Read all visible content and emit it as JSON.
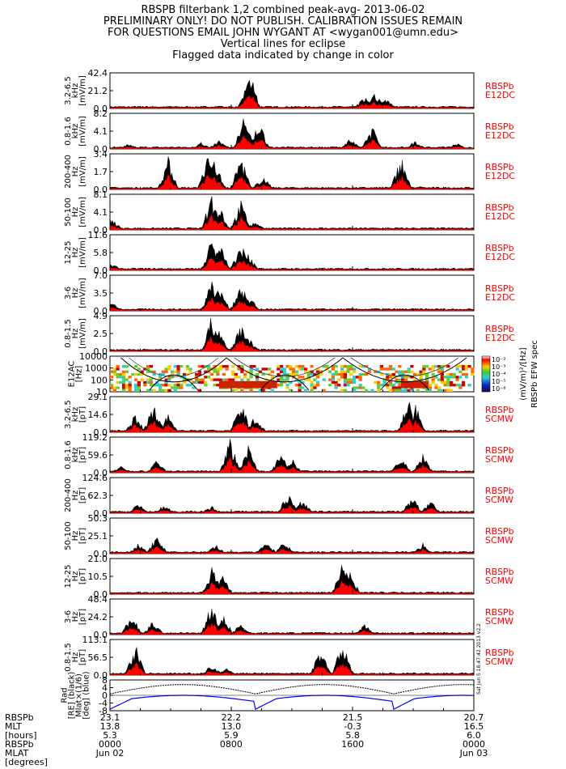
{
  "header": {
    "title": "RBSPB filterbank 1,2 combined peak-avg- 2013-06-02",
    "line2": "PRELIMINARY ONLY! DO NOT PUBLISH. CALIBRATION ISSUES REMAIN",
    "line3": "FOR QUESTIONS EMAIL JOHN WYGANT AT <wygan001@umn.edu>",
    "line4": "Vertical lines for eclipse",
    "line5": "Flagged data indicated by change in color"
  },
  "colors": {
    "data_black": "#000000",
    "data_red": "#ff0000",
    "label_red": "#ff0000",
    "orbit_blue": "#0000ff"
  },
  "chart_data": [
    {
      "type": "area",
      "id": "e12_3_6.5k",
      "ylabel": [
        "3.2-6.5",
        "kHz",
        "[mV/m]"
      ],
      "ylim": [
        0,
        42.4
      ],
      "ticks": [
        "42.4",
        "21.2",
        "0.0"
      ],
      "right_label": [
        "RBSPb",
        "E12DC"
      ],
      "events": [
        [
          0.1,
          0.03
        ],
        [
          0.28,
          0.03
        ],
        [
          0.385,
          1.0
        ],
        [
          0.38,
          0.7
        ],
        [
          0.7,
          0.35
        ],
        [
          0.73,
          0.45
        ],
        [
          0.76,
          0.3
        ]
      ]
    },
    {
      "type": "area",
      "id": "e12_0.8_1.6k",
      "ylabel": [
        "0.8-1.6",
        "kHz",
        "[mV/m]"
      ],
      "ylim": [
        0,
        8.2
      ],
      "ticks": [
        "8.2",
        "4.1",
        "0.0"
      ],
      "right_label": [
        "RBSPb",
        "E12DC"
      ],
      "events": [
        [
          0.05,
          0.15
        ],
        [
          0.25,
          0.2
        ],
        [
          0.3,
          0.25
        ],
        [
          0.37,
          1.0
        ],
        [
          0.41,
          0.8
        ],
        [
          0.66,
          0.3
        ],
        [
          0.72,
          0.65
        ],
        [
          0.84,
          0.25
        ],
        [
          0.95,
          0.2
        ]
      ]
    },
    {
      "type": "area",
      "id": "e12_200_400",
      "ylabel": [
        "200-400",
        "Hz",
        "[mV/m]"
      ],
      "ylim": [
        0,
        3.4
      ],
      "ticks": [
        "3.4",
        "1.7",
        "0.0"
      ],
      "right_label": [
        "RBSPb",
        "E12DC"
      ],
      "events": [
        [
          0.16,
          0.9
        ],
        [
          0.27,
          1.0
        ],
        [
          0.29,
          0.9
        ],
        [
          0.36,
          0.95
        ],
        [
          0.42,
          0.4
        ],
        [
          0.8,
          0.95
        ],
        [
          0.85,
          0.1
        ]
      ]
    },
    {
      "type": "area",
      "id": "e12_50_100",
      "ylabel": [
        "50-100",
        "Hz",
        "[mV/m]"
      ],
      "ylim": [
        0,
        8.1
      ],
      "ticks": [
        "8.1",
        "4.1",
        "0.0"
      ],
      "right_label": [
        "RBSPb",
        "E12DC"
      ],
      "events": [
        [
          0.005,
          0.35
        ],
        [
          0.28,
          1.0
        ],
        [
          0.3,
          0.75
        ],
        [
          0.36,
          0.8
        ],
        [
          0.4,
          0.25
        ]
      ]
    },
    {
      "type": "area",
      "id": "e12_12_25",
      "ylabel": [
        "12-25",
        "Hz",
        "[mV/m]"
      ],
      "ylim": [
        0,
        11.6
      ],
      "ticks": [
        "11.6",
        "5.8",
        "0.0"
      ],
      "right_label": [
        "RBSPb",
        "E12DC"
      ],
      "events": [
        [
          0.005,
          0.2
        ],
        [
          0.28,
          1.0
        ],
        [
          0.3,
          0.85
        ],
        [
          0.36,
          0.75
        ],
        [
          0.38,
          0.45
        ]
      ]
    },
    {
      "type": "area",
      "id": "e12_3_6",
      "ylabel": [
        "3-6",
        "Hz",
        "[mV/m]"
      ],
      "ylim": [
        0,
        7.0
      ],
      "ticks": [
        "7.0",
        "3.5",
        "0.0"
      ],
      "right_label": [
        "RBSPb",
        "E12DC"
      ],
      "events": [
        [
          0.005,
          0.25
        ],
        [
          0.28,
          1.0
        ],
        [
          0.3,
          0.8
        ],
        [
          0.36,
          0.85
        ],
        [
          0.38,
          0.5
        ]
      ]
    },
    {
      "type": "area",
      "id": "e12_0.8_1.5",
      "ylabel": [
        "0.8-1.5",
        "Hz",
        "[mV/m]"
      ],
      "ylim": [
        0,
        4.9
      ],
      "ticks": [
        "4.9",
        "2.5",
        "0.0"
      ],
      "right_label": [
        "RBSPb",
        "E12DC"
      ],
      "events": [
        [
          0.28,
          1.0
        ],
        [
          0.3,
          0.6
        ],
        [
          0.36,
          0.75
        ],
        [
          0.38,
          0.4
        ]
      ]
    },
    {
      "type": "heatmap",
      "id": "e12ac_spec",
      "ylabel": [
        "E12AC",
        "[Hz]"
      ],
      "ticks": [
        "10000",
        "1000",
        "100",
        "10"
      ],
      "colorbar_ticks": [
        "10⁻²",
        "10⁻³",
        "10⁻⁴",
        "10⁻⁵",
        "10⁻⁶"
      ],
      "colorbar_label": "(mV/m)²/[Hz]",
      "colorbar_title": "RBSPb EFW spec"
    },
    {
      "type": "area",
      "id": "scmw_3.2_6.5k",
      "ylabel": [
        "3.2-6.5",
        "kHz",
        "[pT]"
      ],
      "ylim": [
        0,
        29.1
      ],
      "ticks": [
        "29.1",
        "14.6",
        "0.0"
      ],
      "right_label": [
        "RBSPb",
        "SCMW"
      ],
      "events": [
        [
          0.07,
          0.5
        ],
        [
          0.12,
          0.85
        ],
        [
          0.16,
          0.5
        ],
        [
          0.36,
          0.9
        ],
        [
          0.4,
          0.5
        ],
        [
          0.82,
          0.95
        ],
        [
          0.84,
          0.8
        ]
      ]
    },
    {
      "type": "area",
      "id": "scmw_0.8_1.6k",
      "ylabel": [
        "0.8-1.6",
        "kHz",
        "[pT]"
      ],
      "ylim": [
        0,
        119.2
      ],
      "ticks": [
        "119.2",
        "59.6",
        "0.0"
      ],
      "right_label": [
        "RBSPb",
        "SCMW"
      ],
      "events": [
        [
          0.03,
          0.2
        ],
        [
          0.13,
          0.35
        ],
        [
          0.33,
          0.95
        ],
        [
          0.38,
          0.75
        ],
        [
          0.47,
          0.55
        ],
        [
          0.5,
          0.4
        ],
        [
          0.8,
          0.45
        ],
        [
          0.86,
          0.5
        ]
      ]
    },
    {
      "type": "area",
      "id": "scmw_200_400",
      "ylabel": [
        "200-400",
        "Hz",
        "[pT]"
      ],
      "ylim": [
        0,
        124.6
      ],
      "ticks": [
        "124.6",
        "62.3",
        "0.0"
      ],
      "right_label": [
        "RBSPb",
        "SCMW"
      ],
      "events": [
        [
          0.08,
          0.3
        ],
        [
          0.15,
          0.25
        ],
        [
          0.28,
          0.2
        ],
        [
          0.49,
          0.6
        ],
        [
          0.53,
          0.4
        ],
        [
          0.83,
          0.5
        ],
        [
          0.88,
          0.35
        ]
      ]
    },
    {
      "type": "area",
      "id": "scmw_50_100",
      "ylabel": [
        "50-100",
        "Hz",
        "[pT]"
      ],
      "ylim": [
        0,
        50.3
      ],
      "ticks": [
        "50.3",
        "25.1",
        "0.0"
      ],
      "right_label": [
        "RBSPb",
        "SCMW"
      ],
      "events": [
        [
          0.08,
          0.3
        ],
        [
          0.13,
          0.55
        ],
        [
          0.29,
          0.25
        ],
        [
          0.43,
          0.35
        ],
        [
          0.48,
          0.35
        ],
        [
          0.86,
          0.3
        ]
      ]
    },
    {
      "type": "area",
      "id": "scmw_12_25",
      "ylabel": [
        "12-25",
        "Hz",
        "[pT]"
      ],
      "ylim": [
        0,
        21.0
      ],
      "ticks": [
        "21.0",
        "10.5",
        "0.0"
      ],
      "right_label": [
        "RBSPb",
        "SCMW"
      ],
      "events": [
        [
          0.28,
          0.8
        ],
        [
          0.31,
          0.5
        ],
        [
          0.64,
          1.0
        ],
        [
          0.66,
          0.6
        ]
      ]
    },
    {
      "type": "area",
      "id": "scmw_3_6",
      "ylabel": [
        "3-6",
        "Hz",
        "[pT]"
      ],
      "ylim": [
        0,
        48.4
      ],
      "ticks": [
        "48.4",
        "24.2",
        "0.0"
      ],
      "right_label": [
        "RBSPb",
        "SCMW"
      ],
      "events": [
        [
          0.06,
          0.6
        ],
        [
          0.12,
          0.4
        ],
        [
          0.28,
          0.9
        ],
        [
          0.31,
          0.6
        ],
        [
          0.36,
          0.3
        ],
        [
          0.7,
          0.3
        ]
      ]
    },
    {
      "type": "area",
      "id": "scmw_0.8_1.5",
      "ylabel": [
        "0.8-1.5",
        "Hz",
        "[pT]"
      ],
      "ylim": [
        0,
        113.1
      ],
      "ticks": [
        "113.1",
        "56.5",
        "0.0"
      ],
      "right_label": [
        "RBSPb",
        "SCMW"
      ],
      "events": [
        [
          0.07,
          0.9
        ],
        [
          0.28,
          0.3
        ],
        [
          0.32,
          0.2
        ],
        [
          0.58,
          0.8
        ],
        [
          0.64,
          1.0
        ]
      ]
    },
    {
      "type": "line",
      "id": "orbit",
      "ylabel": [
        "Rad",
        "[RE] (black)",
        "Mlat×(1/6)",
        "[deg] (blue)"
      ],
      "ylim": [
        -8,
        8
      ],
      "ticks": [
        "8",
        "4",
        "0",
        "-4",
        "-8"
      ]
    }
  ],
  "xaxis": {
    "rows": [
      {
        "name": "RBSPb",
        "values": [
          "23.1",
          "22.2",
          "21.5",
          "20.7"
        ]
      },
      {
        "name": "MLT",
        "values": [
          "13.8",
          "13.0",
          "-0.3",
          "16.5"
        ]
      },
      {
        "name": "[hours]",
        "values": [
          "5.3",
          "5.9",
          "5.8",
          "6.0"
        ]
      },
      {
        "name": "RBSPb",
        "values": [
          "0000",
          "0800",
          "1600",
          "0000"
        ]
      },
      {
        "name": "MLAT",
        "values": [
          "Jun 02",
          "",
          "",
          "Jun 03"
        ]
      },
      {
        "name": "[degrees]",
        "values": [
          "",
          "",
          "",
          ""
        ]
      }
    ]
  },
  "footnote": "Sat Jun 5 18:47:42 2013 v2.2"
}
